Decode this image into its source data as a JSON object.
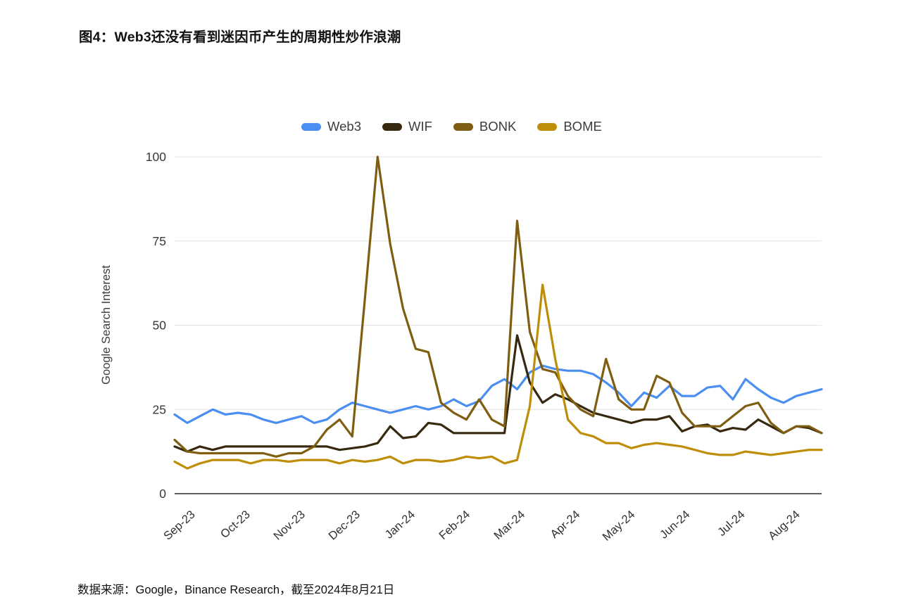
{
  "page": {
    "title": "图4：Web3还没有看到迷因币产生的周期性炒作浪潮",
    "source": "数据来源：Google，Binance Research，截至2024年8月21日"
  },
  "chart_data": {
    "type": "line",
    "title": "图4：Web3还没有看到迷因币产生的周期性炒作浪潮",
    "xlabel": "",
    "ylabel": "Google Search Interest",
    "ylim": [
      0,
      100
    ],
    "yticks": [
      0,
      25,
      50,
      75,
      100
    ],
    "grid": "horizontal",
    "legend_position": "top",
    "x_unit": "weekly",
    "x_tick_labels": [
      "Sep-23",
      "Oct-23",
      "Nov-23",
      "Dec-23",
      "Jan-24",
      "Feb-24",
      "Mar-24",
      "Apr-24",
      "May-24",
      "Jun-24",
      "Jul-24",
      "Aug-24"
    ],
    "series": [
      {
        "name": "Web3",
        "color": "#4a8ef2",
        "values": [
          23.5,
          21,
          23,
          25,
          23.5,
          24,
          23.5,
          22,
          21,
          22,
          23,
          21,
          22,
          25,
          27,
          26,
          25,
          24,
          25,
          26,
          25,
          26,
          28,
          26,
          27.5,
          32,
          34,
          31,
          36,
          38,
          37,
          36.5,
          36.5,
          35.5,
          33,
          30,
          26,
          30,
          28.5,
          32,
          29,
          29,
          31.5,
          32,
          28,
          34,
          31,
          28.5,
          27,
          29,
          30,
          31
        ]
      },
      {
        "name": "WIF",
        "color": "#36290f",
        "values": [
          14,
          12.5,
          14,
          13,
          14,
          14,
          14,
          14,
          14,
          14,
          14,
          14,
          14,
          13,
          13.5,
          14,
          15,
          20,
          16.5,
          17,
          21,
          20.5,
          18,
          18,
          18,
          18,
          18,
          47,
          33,
          27,
          29.5,
          28,
          26,
          24,
          23,
          22,
          21,
          22,
          22,
          23,
          18.5,
          20,
          20.5,
          18.5,
          19.5,
          19,
          22,
          20,
          18,
          20,
          19.5,
          18
        ]
      },
      {
        "name": "BONK",
        "color": "#7f5e11",
        "values": [
          16,
          12.5,
          12,
          12,
          12,
          12,
          12,
          12,
          11,
          12,
          12,
          14,
          19,
          22,
          17,
          58,
          100,
          74,
          55,
          43,
          42,
          27,
          24,
          22,
          28,
          22,
          20,
          81,
          48,
          37,
          36,
          29,
          25,
          23,
          40,
          28,
          25,
          25,
          35,
          33,
          24,
          20,
          20,
          20,
          23,
          26,
          27,
          21,
          18,
          20,
          20,
          18
        ]
      },
      {
        "name": "BOME",
        "color": "#bf8e08",
        "values": [
          9.5,
          7.5,
          9,
          10,
          10,
          10,
          9,
          10,
          10,
          9.5,
          10,
          10,
          10,
          9,
          10,
          9.5,
          10,
          11,
          9,
          10,
          10,
          9.5,
          10,
          11,
          10.5,
          11,
          9,
          10,
          26,
          62,
          40,
          22,
          18,
          17,
          15,
          15,
          13.5,
          14.5,
          15,
          14.5,
          14,
          13,
          12,
          11.5,
          11.5,
          12.5,
          12,
          11.5,
          12,
          12.5,
          13,
          13
        ]
      }
    ]
  }
}
